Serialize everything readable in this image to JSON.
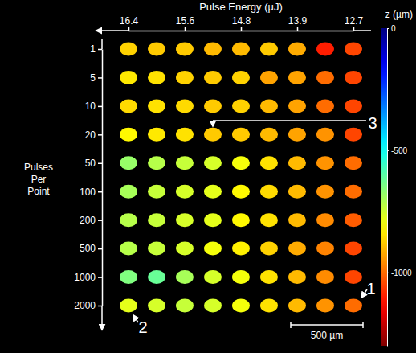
{
  "chart_data": {
    "type": "heatmap",
    "xlabel": "Pulse Energy (µJ)",
    "ylabel": "Pulses Per Point",
    "x": [
      "16.4",
      null,
      "15.6",
      null,
      "14.8",
      null,
      "13.9",
      null,
      "12.7"
    ],
    "y": [
      "1",
      "5",
      "10",
      "20",
      "50",
      "100",
      "200",
      "500",
      "1000",
      "2000"
    ],
    "values": [
      [
        -870,
        -880,
        -880,
        -900,
        -900,
        -880,
        -920,
        -1100,
        -1050
      ],
      [
        -840,
        -850,
        -870,
        -880,
        -870,
        -930,
        -930,
        -1000,
        -1050
      ],
      [
        -860,
        -850,
        -860,
        -880,
        -870,
        -900,
        -930,
        -1000,
        -1050
      ],
      [
        -820,
        -840,
        -850,
        -880,
        -880,
        -900,
        -930,
        -950,
        -1050
      ],
      [
        -680,
        -720,
        -740,
        -760,
        -800,
        -850,
        -900,
        -950,
        -1000
      ],
      [
        -700,
        -740,
        -760,
        -780,
        -820,
        -860,
        -900,
        -950,
        -1000
      ],
      [
        -720,
        -740,
        -760,
        -780,
        -820,
        -850,
        -900,
        -960,
        -1020
      ],
      [
        -720,
        -740,
        -760,
        -800,
        -830,
        -870,
        -920,
        -970,
        -1050
      ],
      [
        -650,
        -620,
        -700,
        -760,
        -800,
        -850,
        -900,
        -960,
        -1050
      ],
      [
        -780,
        -760,
        -740,
        -760,
        -800,
        -850,
        -900,
        -950,
        -1000
      ]
    ],
    "colorbar": {
      "label": "z (µm)",
      "range": [
        -1300,
        0
      ],
      "ticks": [
        0,
        -500,
        -1000
      ]
    },
    "annotations": [
      "1",
      "2",
      "3"
    ],
    "scale_bar": "500 µm"
  }
}
